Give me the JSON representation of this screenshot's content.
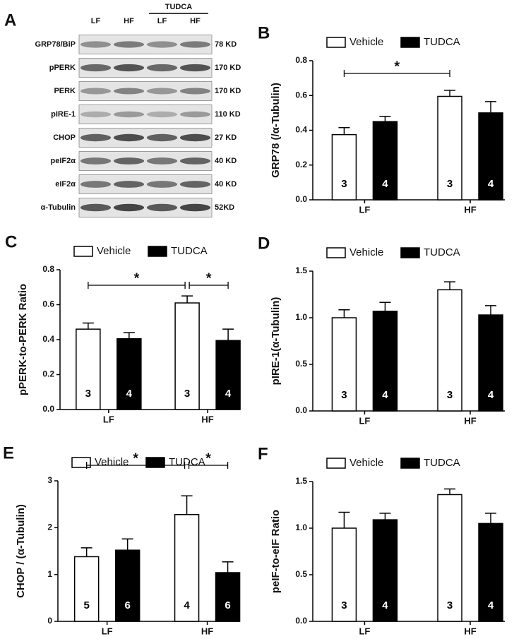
{
  "blot": {
    "panel_label": "A",
    "lanes": [
      "LF",
      "HF",
      "LF",
      "HF"
    ],
    "lane_group": "TUDCA",
    "rows": [
      {
        "protein": "GRP78/BiP",
        "size": "78 KD"
      },
      {
        "protein": "pPERK",
        "size": "170 KD"
      },
      {
        "protein": "PERK",
        "size": "170 KD"
      },
      {
        "protein": "pIRE-1",
        "size": "110 KD"
      },
      {
        "protein": "CHOP",
        "size": "27 KD"
      },
      {
        "protein": "peIF2α",
        "size": "40 KD"
      },
      {
        "protein": "eIF2α",
        "size": "40 KD"
      },
      {
        "protein": "α-Tubulin",
        "size": "52KD"
      }
    ]
  },
  "chart_data": [
    {
      "type": "bar",
      "panel_label": "B",
      "y_label": "GRP78 (/α-Tubulin)",
      "categories": [
        "LF",
        "HF"
      ],
      "series": [
        {
          "name": "Vehicle",
          "color": "#ffffff",
          "values": [
            0.375,
            0.595
          ],
          "errors": [
            0.04,
            0.035
          ],
          "n": [
            3,
            3
          ]
        },
        {
          "name": "TUDCA",
          "color": "#000000",
          "values": [
            0.45,
            0.5
          ],
          "errors": [
            0.03,
            0.065
          ],
          "n": [
            4,
            4
          ]
        }
      ],
      "ylim": [
        0,
        0.8
      ],
      "yticks": [
        {
          "value": 0,
          "label": "0.0"
        },
        0.2,
        0.4,
        0.6,
        0.8
      ],
      "annotations": [
        "*"
      ]
    },
    {
      "type": "bar",
      "panel_label": "C",
      "y_label": "pPERK-to-PERK Ratio",
      "categories": [
        "LF",
        "HF"
      ],
      "series": [
        {
          "name": "Vehicle",
          "color": "#ffffff",
          "values": [
            0.46,
            0.61
          ],
          "errors": [
            0.035,
            0.04
          ],
          "n": [
            3,
            3
          ]
        },
        {
          "name": "TUDCA",
          "color": "#000000",
          "values": [
            0.405,
            0.395
          ],
          "errors": [
            0.035,
            0.065
          ],
          "n": [
            4,
            4
          ]
        }
      ],
      "ylim": [
        0,
        0.8
      ],
      "yticks": [
        {
          "value": 0,
          "label": "0.0"
        },
        0.2,
        0.4,
        0.6,
        0.8
      ],
      "annotations": [
        "*",
        "*"
      ]
    },
    {
      "type": "bar",
      "panel_label": "D",
      "y_label": "pIRE-1(α-Tubulin)",
      "categories": [
        "LF",
        "HF"
      ],
      "series": [
        {
          "name": "Vehicle",
          "color": "#ffffff",
          "values": [
            1.0,
            1.3
          ],
          "errors": [
            0.085,
            0.085
          ],
          "n": [
            3,
            3
          ]
        },
        {
          "name": "TUDCA",
          "color": "#000000",
          "values": [
            1.07,
            1.03
          ],
          "errors": [
            0.095,
            0.1
          ],
          "n": [
            4,
            4
          ]
        }
      ],
      "ylim": [
        0,
        1.5
      ],
      "yticks": [
        {
          "value": 0,
          "label": "0.0"
        },
        0.5,
        {
          "value": 1,
          "label": "1.0"
        },
        1.5
      ],
      "annotations": []
    },
    {
      "type": "bar",
      "panel_label": "E",
      "y_label": "CHOP / (α-Tubulin)",
      "categories": [
        "LF",
        "HF"
      ],
      "series": [
        {
          "name": "Vehicle",
          "color": "#ffffff",
          "values": [
            1.38,
            2.28
          ],
          "errors": [
            0.19,
            0.4
          ],
          "n": [
            5,
            4
          ]
        },
        {
          "name": "TUDCA",
          "color": "#000000",
          "values": [
            1.52,
            1.04
          ],
          "errors": [
            0.24,
            0.23
          ],
          "n": [
            6,
            6
          ]
        }
      ],
      "ylim": [
        0,
        3
      ],
      "yticks": [
        0,
        1,
        2,
        3
      ],
      "annotations": [
        "*",
        "*"
      ]
    },
    {
      "type": "bar",
      "panel_label": "F",
      "y_label": "peIF-to-eIF Ratio",
      "categories": [
        "LF",
        "HF"
      ],
      "series": [
        {
          "name": "Vehicle",
          "color": "#ffffff",
          "values": [
            1.0,
            1.36
          ],
          "errors": [
            0.17,
            0.06
          ],
          "n": [
            3,
            3
          ]
        },
        {
          "name": "TUDCA",
          "color": "#000000",
          "values": [
            1.09,
            1.05
          ],
          "errors": [
            0.07,
            0.11
          ],
          "n": [
            4,
            4
          ]
        }
      ],
      "ylim": [
        0,
        1.5
      ],
      "yticks": [
        {
          "value": 0,
          "label": "0.0"
        },
        0.5,
        {
          "value": 1,
          "label": "1.0"
        },
        1.5
      ],
      "annotations": []
    }
  ]
}
